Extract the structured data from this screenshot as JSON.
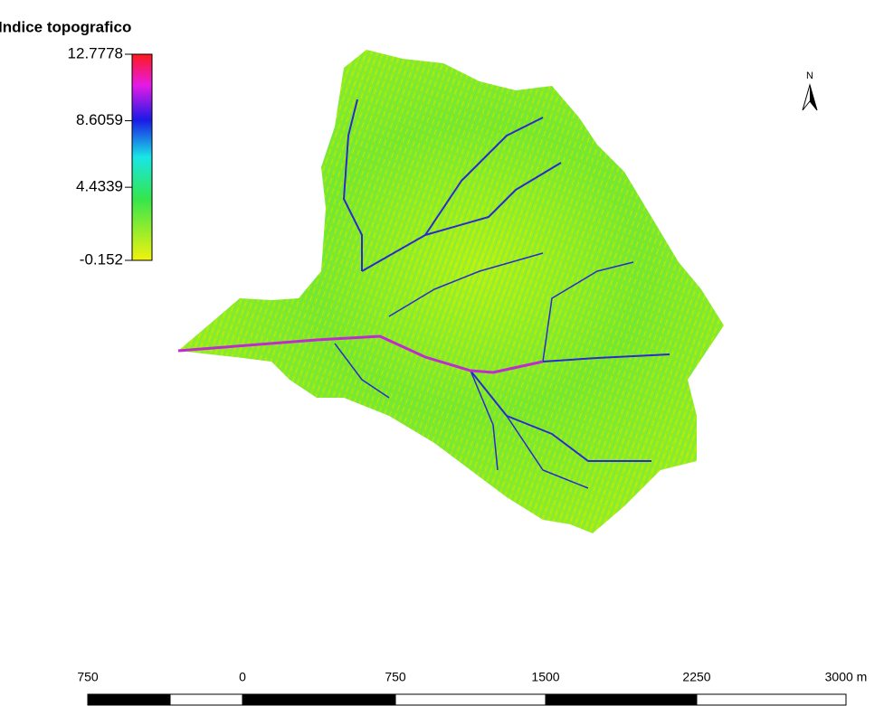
{
  "legend": {
    "title": "Indice topografico",
    "ticks": [
      12.7778,
      8.6059,
      4.4339,
      -0.152
    ]
  },
  "north_arrow": {
    "label": "N"
  },
  "scale_bar": {
    "labels": [
      "750",
      "0",
      "750",
      "1500",
      "2250",
      "3000 m"
    ]
  }
}
